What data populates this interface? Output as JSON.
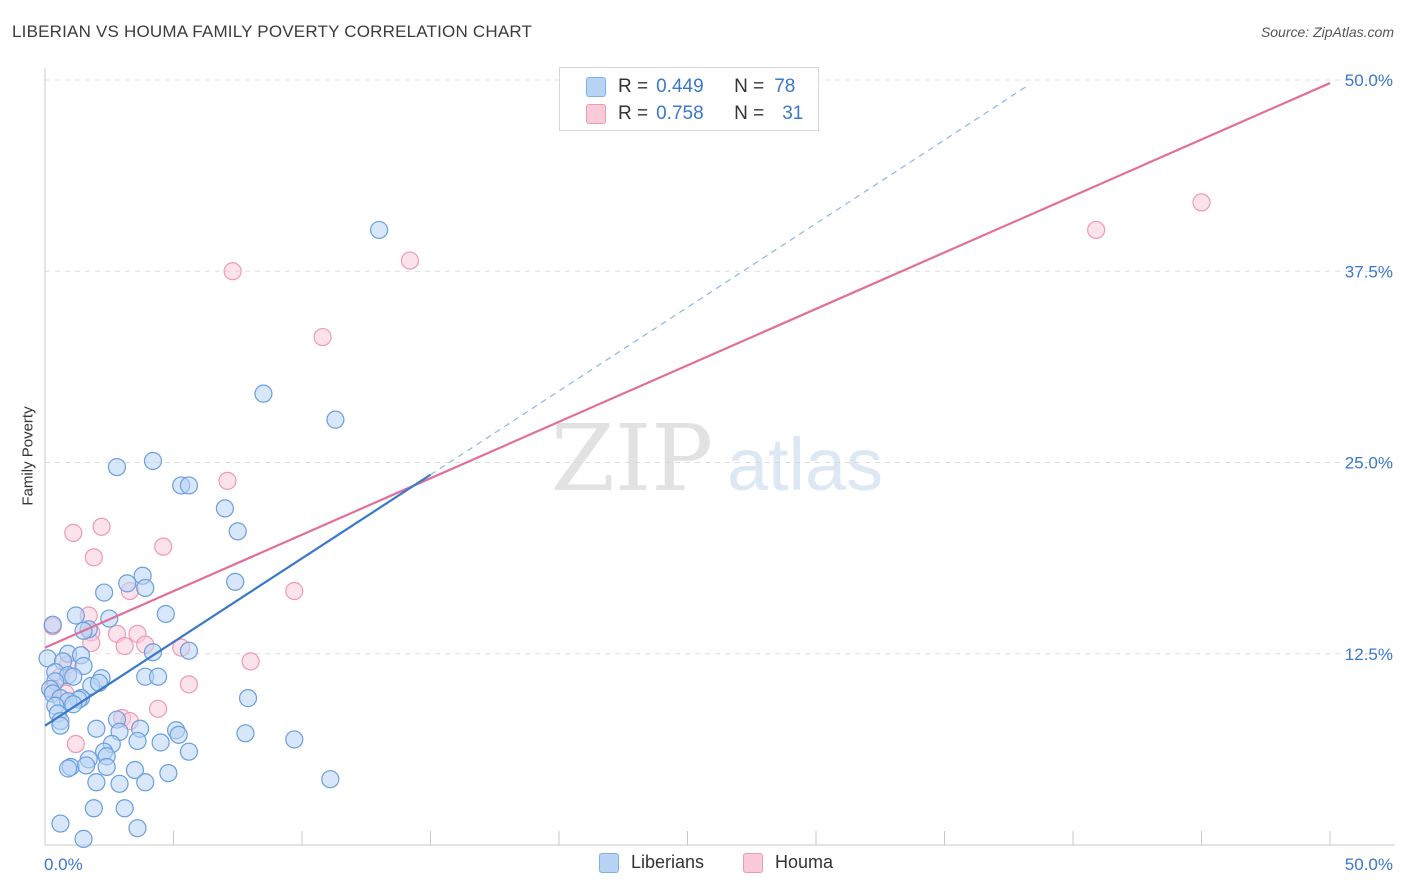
{
  "title": "LIBERIAN VS HOUMA FAMILY POVERTY CORRELATION CHART",
  "source": "Source: ZipAtlas.com",
  "watermark": {
    "zip": "ZIP",
    "atlas": "atlas"
  },
  "legend": {
    "r_label": "R =",
    "n_label": "N =",
    "rows": [
      {
        "r": "0.449",
        "n": "78",
        "color": "#b8d4f4"
      },
      {
        "r": "0.758",
        "n": "31",
        "color": "#f9cad8"
      }
    ]
  },
  "bottom_legend": [
    "Liberians",
    "Houma"
  ],
  "colors": {
    "blue": "#3a78c9",
    "blue_fill": "#b8d4f4",
    "pink": "#e0709a",
    "pink_fill": "#f9cad8",
    "axis_text": "#3a78c9"
  },
  "chart_data": {
    "type": "scatter",
    "title": "LIBERIAN VS HOUMA FAMILY POVERTY CORRELATION CHART",
    "xlabel": "",
    "ylabel": "Family Poverty",
    "xlim": [
      0,
      50
    ],
    "ylim": [
      0,
      50
    ],
    "x_tick_labels": [
      "0.0%",
      "50.0%"
    ],
    "y_ticks": [
      12.5,
      25.0,
      37.5,
      50.0
    ],
    "y_tick_labels": [
      "12.5%",
      "25.0%",
      "37.5%",
      "50.0%"
    ],
    "grid": true,
    "legend_position": "top-center",
    "series": [
      {
        "name": "Liberians",
        "r": 0.449,
        "n": 78,
        "color": "#3a78c9",
        "trend": {
          "x": [
            0.0,
            15.0
          ],
          "y": [
            7.8,
            24.2
          ]
        },
        "trend_extension": {
          "x": [
            15.0,
            38.3
          ],
          "y": [
            24.2,
            49.7
          ]
        },
        "points": [
          [
            13.0,
            40.2
          ],
          [
            8.5,
            29.5
          ],
          [
            11.3,
            27.8
          ],
          [
            4.2,
            25.1
          ],
          [
            2.8,
            24.7
          ],
          [
            5.3,
            23.5
          ],
          [
            5.6,
            23.5
          ],
          [
            7.0,
            22.0
          ],
          [
            7.5,
            20.5
          ],
          [
            3.8,
            17.6
          ],
          [
            3.2,
            17.1
          ],
          [
            7.4,
            17.2
          ],
          [
            3.9,
            16.8
          ],
          [
            2.3,
            16.5
          ],
          [
            4.7,
            15.1
          ],
          [
            1.2,
            15.0
          ],
          [
            2.5,
            14.8
          ],
          [
            0.3,
            14.4
          ],
          [
            1.7,
            14.1
          ],
          [
            1.5,
            14.0
          ],
          [
            4.2,
            12.6
          ],
          [
            5.6,
            12.7
          ],
          [
            0.9,
            12.5
          ],
          [
            1.4,
            12.4
          ],
          [
            0.1,
            12.2
          ],
          [
            0.7,
            12.0
          ],
          [
            1.5,
            11.7
          ],
          [
            0.4,
            11.3
          ],
          [
            0.9,
            11.1
          ],
          [
            1.1,
            11.0
          ],
          [
            3.9,
            11.0
          ],
          [
            4.4,
            11.0
          ],
          [
            2.2,
            10.9
          ],
          [
            0.4,
            10.7
          ],
          [
            0.2,
            10.2
          ],
          [
            1.8,
            10.4
          ],
          [
            2.1,
            10.6
          ],
          [
            0.3,
            9.9
          ],
          [
            0.6,
            9.6
          ],
          [
            1.4,
            9.6
          ],
          [
            1.3,
            9.5
          ],
          [
            0.9,
            9.4
          ],
          [
            1.1,
            9.2
          ],
          [
            7.9,
            9.6
          ],
          [
            0.4,
            9.1
          ],
          [
            0.5,
            8.6
          ],
          [
            0.6,
            8.1
          ],
          [
            2.8,
            8.2
          ],
          [
            0.6,
            7.8
          ],
          [
            2.0,
            7.6
          ],
          [
            2.9,
            7.4
          ],
          [
            3.7,
            7.6
          ],
          [
            5.1,
            7.5
          ],
          [
            5.2,
            7.2
          ],
          [
            7.8,
            7.3
          ],
          [
            9.7,
            6.9
          ],
          [
            3.6,
            6.8
          ],
          [
            2.6,
            6.6
          ],
          [
            4.5,
            6.7
          ],
          [
            5.6,
            6.1
          ],
          [
            2.3,
            6.1
          ],
          [
            2.4,
            5.8
          ],
          [
            1.7,
            5.6
          ],
          [
            1.0,
            5.1
          ],
          [
            0.9,
            5.0
          ],
          [
            1.6,
            5.2
          ],
          [
            2.4,
            5.1
          ],
          [
            3.5,
            4.9
          ],
          [
            4.8,
            4.7
          ],
          [
            11.1,
            4.3
          ],
          [
            2.0,
            4.1
          ],
          [
            2.9,
            4.0
          ],
          [
            3.9,
            4.1
          ],
          [
            1.9,
            2.4
          ],
          [
            3.1,
            2.4
          ],
          [
            3.6,
            1.1
          ],
          [
            1.5,
            0.4
          ],
          [
            0.6,
            1.4
          ]
        ]
      },
      {
        "name": "Houma",
        "r": 0.758,
        "n": 31,
        "color": "#e0709a",
        "trend": {
          "x": [
            0.0,
            50.0
          ],
          "y": [
            12.9,
            49.8
          ]
        },
        "points": [
          [
            45.0,
            42.0
          ],
          [
            40.9,
            40.2
          ],
          [
            14.2,
            38.2
          ],
          [
            7.3,
            37.5
          ],
          [
            10.8,
            33.2
          ],
          [
            7.1,
            23.8
          ],
          [
            2.2,
            20.8
          ],
          [
            1.1,
            20.4
          ],
          [
            4.6,
            19.5
          ],
          [
            1.9,
            18.8
          ],
          [
            9.7,
            16.6
          ],
          [
            3.3,
            16.6
          ],
          [
            1.7,
            15.0
          ],
          [
            0.3,
            14.3
          ],
          [
            1.8,
            13.9
          ],
          [
            2.8,
            13.8
          ],
          [
            3.6,
            13.8
          ],
          [
            1.8,
            13.2
          ],
          [
            3.9,
            13.1
          ],
          [
            3.1,
            13.0
          ],
          [
            5.3,
            12.9
          ],
          [
            8.0,
            12.0
          ],
          [
            0.9,
            11.8
          ],
          [
            0.6,
            11.0
          ],
          [
            5.6,
            10.5
          ],
          [
            0.3,
            10.2
          ],
          [
            0.8,
            9.9
          ],
          [
            4.4,
            8.9
          ],
          [
            3.0,
            8.3
          ],
          [
            3.3,
            8.1
          ],
          [
            1.2,
            6.6
          ]
        ]
      }
    ]
  }
}
